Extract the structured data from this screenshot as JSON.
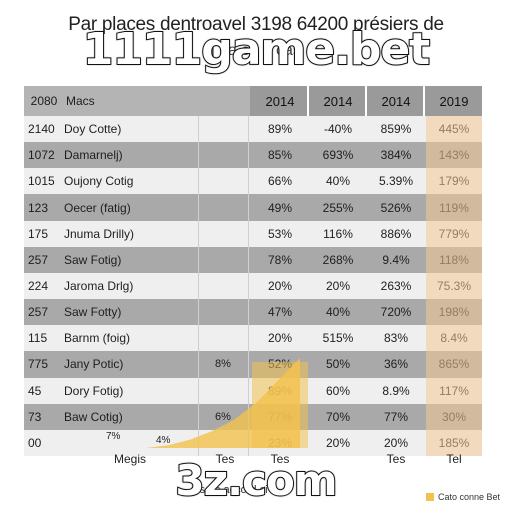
{
  "chart_data": {
    "type": "table",
    "title_line1": "Par places dentroavel 3198 64200 présiers de",
    "title_line2": "j         pa       ce   a    cas",
    "header": {
      "id": "2080",
      "label": "Macs",
      "years": [
        "2014",
        "2014",
        "2014",
        "2019"
      ]
    },
    "rows": [
      {
        "id": "2140",
        "label": "Doy Cotte)",
        "extra": "",
        "values": [
          "89%",
          "-40%",
          "859%",
          "445%"
        ]
      },
      {
        "id": "1072",
        "label": "Damarnelj)",
        "extra": "",
        "values": [
          "85%",
          "693%",
          "384%",
          "143%"
        ]
      },
      {
        "id": "1015",
        "label": "Oujony Cotig",
        "extra": "",
        "values": [
          "66%",
          "40%",
          "5.39%",
          "179%"
        ]
      },
      {
        "id": "123",
        "label": "Oecer (fatig)",
        "extra": "",
        "values": [
          "49%",
          "255%",
          "526%",
          "119%"
        ]
      },
      {
        "id": "175",
        "label": "Jnuma Drilly)",
        "extra": "",
        "values": [
          "53%",
          "116%",
          "886%",
          "779%"
        ]
      },
      {
        "id": "257",
        "label": "Saw Fotig)",
        "extra": "",
        "values": [
          "78%",
          "268%",
          "9.4%",
          "118%"
        ]
      },
      {
        "id": "224",
        "label": "Jaroma Drlg)",
        "extra": "",
        "values": [
          "20%",
          "20%",
          "263%",
          "75.3%"
        ]
      },
      {
        "id": "257",
        "label": "Saw Fotty)",
        "extra": "",
        "values": [
          "47%",
          "40%",
          "720%",
          "198%"
        ]
      },
      {
        "id": "115",
        "label": "Barnm (foig)",
        "extra": "",
        "values": [
          "20%",
          "515%",
          "83%",
          "8.4%"
        ]
      },
      {
        "id": "775",
        "label": "Jany Potic)",
        "extra": "8%",
        "values": [
          "52%",
          "50%",
          "36%",
          "865%"
        ]
      },
      {
        "id": "45",
        "label": "Dory Fotig)",
        "extra": "",
        "values": [
          "89%",
          "60%",
          "8.9%",
          "117%"
        ]
      },
      {
        "id": "73",
        "label": "Baw Cotig)",
        "extra": "6%",
        "values": [
          "77%",
          "70%",
          "77%",
          "30%"
        ]
      },
      {
        "id": "00",
        "label": "",
        "extra": "",
        "values": [
          "23%",
          "20%",
          "20%",
          "185%"
        ]
      }
    ],
    "footer": [
      "Megis",
      "Tes",
      "Tes",
      "Tes",
      "Tel"
    ],
    "annotations": [
      "7%",
      "4%"
    ],
    "area_series": {
      "name": "",
      "values": [
        0,
        1,
        3,
        6,
        10,
        16,
        24,
        32
      ]
    },
    "legend": [
      {
        "label": "Cato conne Bet",
        "color": "#f3c24e"
      }
    ],
    "footnote": "rsa n accord ci",
    "column_highlight_color": "#f4c896",
    "area_color": "#f3c24e"
  },
  "watermarks": {
    "top": "1111game.bet",
    "bottom": "3z.com"
  }
}
